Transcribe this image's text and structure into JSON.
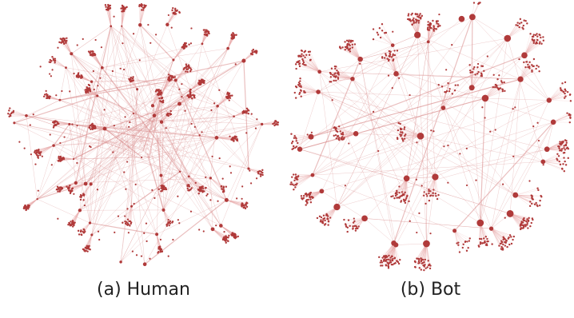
{
  "figure": {
    "panels": [
      {
        "id": "human",
        "caption": "(a) Human"
      },
      {
        "id": "bot",
        "caption": "(b) Bot"
      }
    ],
    "colors": {
      "node": "#b03a3a",
      "edge": "#d98a8a",
      "fan": "#e8a9a9"
    }
  }
}
